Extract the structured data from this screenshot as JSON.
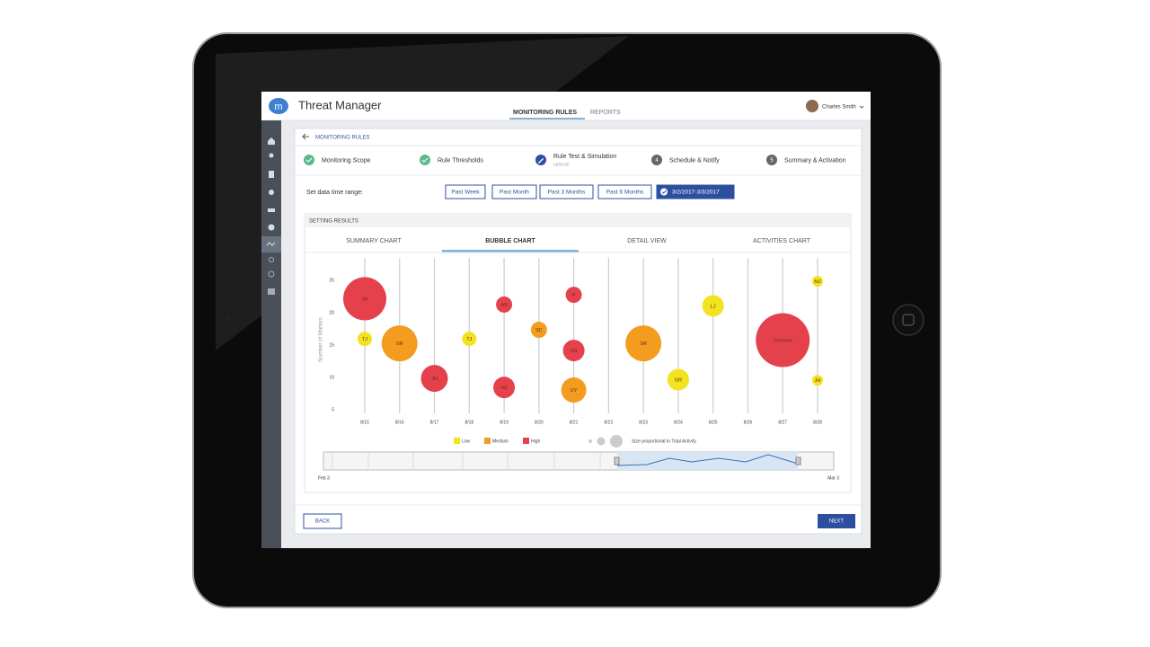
{
  "app": {
    "logo": "m",
    "title": "Threat Manager",
    "tabs": [
      "MONITORING RULES",
      "REPORTS"
    ],
    "active_tab": 0,
    "user": "Charles Smith"
  },
  "breadcrumb": "MONITORING RULES",
  "steps": [
    {
      "state": "done",
      "label": "Monitoring Scope"
    },
    {
      "state": "done",
      "label": "Rule Thresholds"
    },
    {
      "state": "current",
      "label": "Rule Test & Simulation",
      "sub": "optional"
    },
    {
      "state": "todo",
      "number": 4,
      "label": "Schedule & Notify"
    },
    {
      "state": "todo",
      "number": 5,
      "label": "Summary & Activation"
    }
  ],
  "range": {
    "label": "Set data time range:",
    "options": [
      "Past Week",
      "Past Month",
      "Past 3 Months",
      "Past 6 Months",
      "3/2/2017-3/3/2017"
    ],
    "selected": 4
  },
  "panel": {
    "title": "SETTING RESULTS",
    "tabs": [
      "SUMMARY CHART",
      "BUBBLE CHART",
      "DETAIL VIEW",
      "ACTIVITIES CHART"
    ],
    "active_tab": 1
  },
  "chart_data": {
    "type": "bubble",
    "y_label": "Number of Matters",
    "categories": [
      "8/15",
      "8/16",
      "8/17",
      "8/18",
      "8/19",
      "8/20",
      "8/21",
      "8/22",
      "8/23",
      "8/24",
      "8/25",
      "8/26",
      "8/27",
      "8/28"
    ],
    "ylim": [
      4.5,
      28.5
    ],
    "yticks": [
      5,
      10,
      15,
      20,
      25
    ],
    "size_note": "Size proportional to Total Activity",
    "series": [
      {
        "name": "Low",
        "color": "#f3e21f",
        "x": [
          "8/15",
          "8/18",
          "8/24",
          "8/25",
          "8/28",
          "8/28"
        ],
        "values": [
          16,
          16,
          9.7,
          21.1,
          24.9,
          9.6
        ],
        "sizes": [
          8,
          8,
          12,
          12,
          6,
          6
        ],
        "labels": [
          "TJ",
          "TJ",
          "GR",
          "LJ",
          "MJ",
          "JH"
        ]
      },
      {
        "name": "Medium",
        "color": "#f39c1f",
        "x": [
          "8/16",
          "8/20",
          "8/21",
          "8/23"
        ],
        "values": [
          15.3,
          17.4,
          8.1,
          15.3
        ],
        "sizes": [
          20,
          9,
          14,
          20
        ],
        "labels": [
          "SR",
          "SC",
          "UY",
          "SR"
        ]
      },
      {
        "name": "High",
        "color": "#e5414c",
        "x": [
          "8/15",
          "8/17",
          "8/19",
          "8/19",
          "8/21",
          "8/21",
          "8/27"
        ],
        "values": [
          22.2,
          9.9,
          21.3,
          8.5,
          22.8,
          14.2,
          15.8
        ],
        "sizes": [
          24,
          15,
          9,
          12,
          9,
          12,
          30
        ],
        "labels": [
          "JH",
          "JH",
          "AS",
          "HJ",
          "P",
          "VG",
          "Johnson"
        ]
      }
    ]
  },
  "slider": {
    "start": "Feb 3",
    "end": "Mar 3"
  },
  "footer": {
    "back": "BACK",
    "next": "NEXT"
  }
}
